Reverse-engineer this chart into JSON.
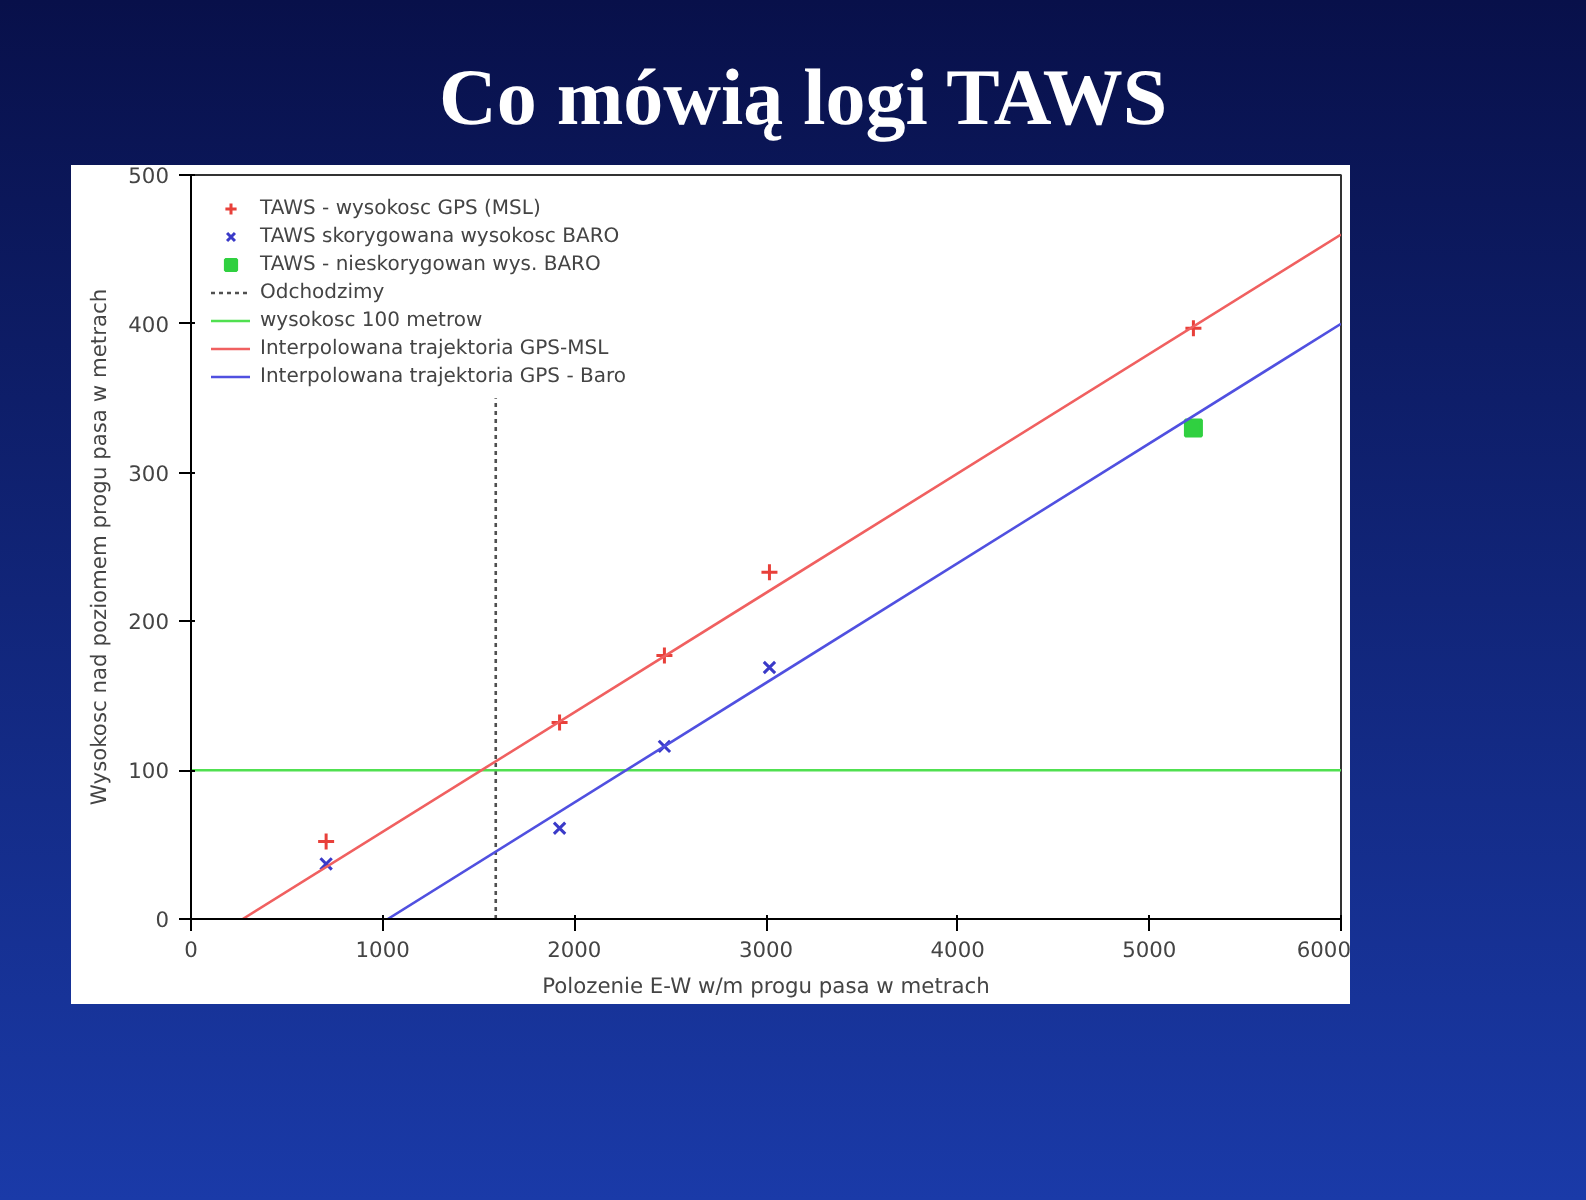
{
  "chart_data": {
    "type": "scatter",
    "title": "Co mówią logi TAWS",
    "xlabel": "Polozenie E-W w/m progu pasa w metrach",
    "ylabel": "Wysokosc nad poziomem progu pasa w metrach",
    "xlim": [
      0,
      6000
    ],
    "ylim": [
      0,
      500
    ],
    "xticks": [
      0,
      1000,
      2000,
      3000,
      4000,
      5000,
      6000
    ],
    "yticks": [
      0,
      100,
      200,
      300,
      400,
      500
    ],
    "grid": false,
    "legend": "top left",
    "series": [
      {
        "name": "TAWS - wysokosc GPS (MSL)",
        "marker": "cross",
        "color": "#e8403a",
        "x": [
          705,
          1923,
          2470,
          3018,
          5230
        ],
        "values": [
          52,
          132,
          177,
          233,
          397
        ]
      },
      {
        "name": "TAWS skorygowana wysokosc BARO",
        "marker": "x",
        "color": "#3a3ac8",
        "x": [
          705,
          1923,
          2470,
          3018
        ],
        "values": [
          37,
          61,
          116,
          169
        ]
      },
      {
        "name": "TAWS - nieskorygowan wys. BARO",
        "marker": "square",
        "color": "#30d040",
        "x": [
          5230
        ],
        "values": [
          330
        ]
      },
      {
        "name": "Odchodzimy",
        "type": "line",
        "line_style": "dotted",
        "color": "#505050",
        "x": [
          1590,
          1590
        ],
        "values": [
          0,
          350
        ]
      },
      {
        "name": "wysokosc 100 metrow",
        "type": "line",
        "line_style": "solid",
        "color": "#50e050",
        "x": [
          0,
          6000
        ],
        "values": [
          100,
          100
        ]
      },
      {
        "name": "Interpolowana trajektoria GPS-MSL",
        "type": "line",
        "line_style": "solid",
        "color": "#f06060",
        "x": [
          270,
          6000
        ],
        "values": [
          0,
          460
        ]
      },
      {
        "name": "Interpolowana trajektoria GPS - Baro",
        "type": "line",
        "line_style": "solid",
        "color": "#5050e0",
        "x": [
          1027,
          6000
        ],
        "values": [
          0,
          400
        ]
      }
    ]
  }
}
